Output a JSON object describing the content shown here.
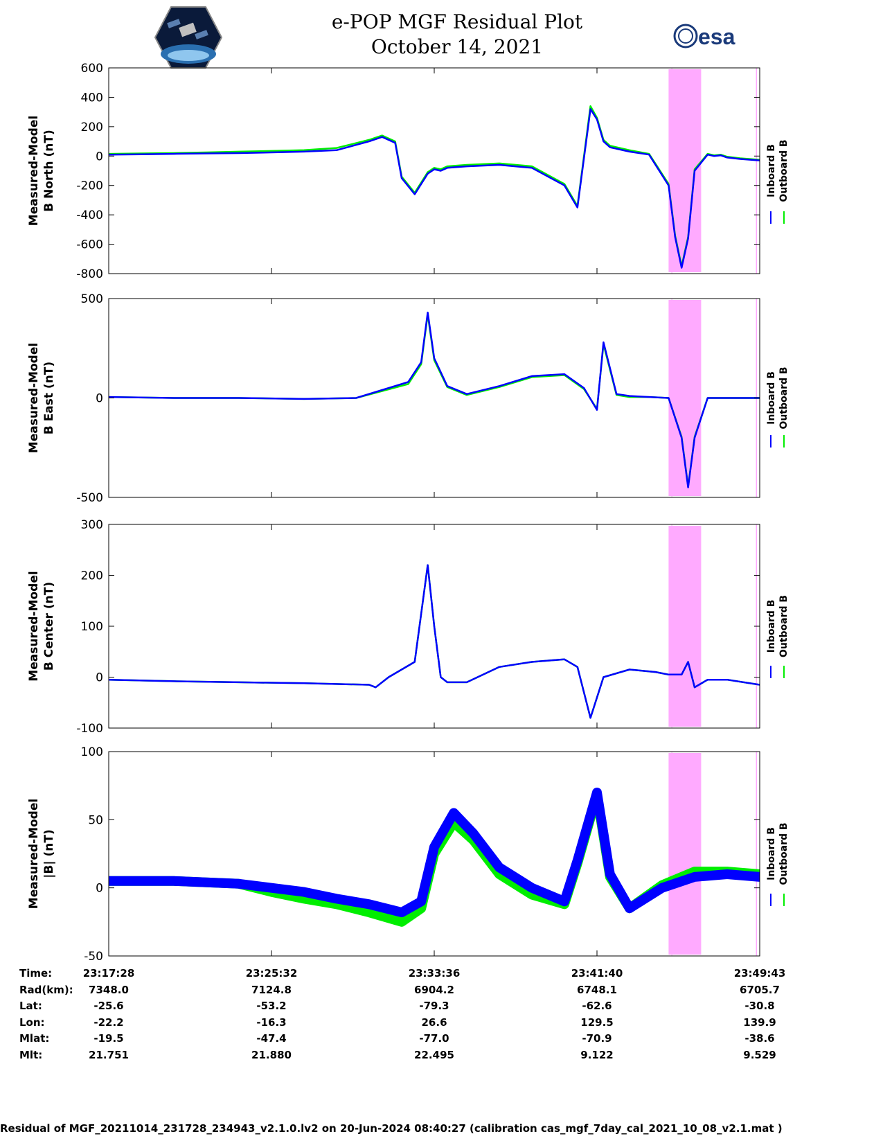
{
  "title": "e-POP MGF Residual Plot",
  "subtitle": "October 14, 2021",
  "logos": {
    "left": "cassiope-satellite-logo",
    "right_text": "esa"
  },
  "colors": {
    "inboard": "#0000ff",
    "outboard": "#00ee00",
    "highlight": "#ffaaff"
  },
  "chart_data": [
    {
      "type": "line",
      "ylabel_line1": "Measured-Model",
      "ylabel_line2": "B North (nT)",
      "ylim": [
        -800,
        600
      ],
      "yticks": [
        "600",
        "400",
        "200",
        "0",
        "-200",
        "-400",
        "-600",
        "-800"
      ],
      "ytick_values": [
        600,
        400,
        200,
        0,
        -200,
        -400,
        -600,
        -800
      ],
      "x": [
        0,
        0.05,
        0.1,
        0.15,
        0.2,
        0.25,
        0.3,
        0.35,
        0.4,
        0.42,
        0.44,
        0.45,
        0.47,
        0.49,
        0.5,
        0.51,
        0.52,
        0.55,
        0.6,
        0.65,
        0.7,
        0.72,
        0.74,
        0.75,
        0.76,
        0.77,
        0.8,
        0.83,
        0.86,
        0.87,
        0.88,
        0.89,
        0.9,
        0.92,
        0.93,
        0.94,
        0.95,
        0.97,
        1.0
      ],
      "series": [
        {
          "name": "Inboard B",
          "values": [
            10,
            12,
            15,
            18,
            20,
            25,
            30,
            40,
            100,
            130,
            90,
            -150,
            -260,
            -120,
            -90,
            -100,
            -80,
            -70,
            -60,
            -80,
            -200,
            -350,
            320,
            250,
            100,
            60,
            30,
            10,
            -200,
            -550,
            -760,
            -560,
            -100,
            10,
            0,
            5,
            -10,
            -20,
            -30
          ]
        },
        {
          "name": "Outboard B",
          "values": [
            15,
            18,
            20,
            25,
            30,
            35,
            40,
            55,
            110,
            140,
            100,
            -140,
            -250,
            -110,
            -80,
            -90,
            -70,
            -60,
            -50,
            -70,
            -190,
            -340,
            340,
            260,
            110,
            70,
            40,
            15,
            -190,
            -540,
            -750,
            -550,
            -90,
            15,
            5,
            10,
            -5,
            -15,
            -25
          ]
        }
      ],
      "highlight": [
        0.86,
        0.91
      ]
    },
    {
      "type": "line",
      "ylabel_line1": "Measured-Model",
      "ylabel_line2": "B East (nT)",
      "ylim": [
        -500,
        500
      ],
      "yticks": [
        "500",
        "0",
        "-500"
      ],
      "ytick_values": [
        500,
        0,
        -500
      ],
      "x": [
        0,
        0.1,
        0.2,
        0.3,
        0.38,
        0.42,
        0.46,
        0.48,
        0.49,
        0.5,
        0.52,
        0.55,
        0.6,
        0.65,
        0.7,
        0.73,
        0.75,
        0.76,
        0.78,
        0.8,
        0.83,
        0.86,
        0.88,
        0.89,
        0.9,
        0.92,
        0.95,
        1.0
      ],
      "series": [
        {
          "name": "Inboard B",
          "values": [
            5,
            0,
            0,
            -5,
            0,
            40,
            80,
            180,
            430,
            200,
            60,
            20,
            60,
            110,
            120,
            50,
            -60,
            280,
            20,
            10,
            5,
            0,
            -200,
            -450,
            -200,
            0,
            0,
            0
          ]
        },
        {
          "name": "Outboard B",
          "values": [
            5,
            0,
            0,
            -5,
            0,
            35,
            70,
            170,
            420,
            190,
            55,
            15,
            55,
            105,
            115,
            45,
            -55,
            270,
            15,
            5,
            5,
            0,
            -195,
            -445,
            -195,
            0,
            0,
            0
          ]
        }
      ],
      "highlight": [
        0.86,
        0.91
      ]
    },
    {
      "type": "line",
      "ylabel_line1": "Measured-Model",
      "ylabel_line2": "B Center (nT)",
      "ylim": [
        -100,
        300
      ],
      "yticks": [
        "300",
        "200",
        "100",
        "0",
        "-100"
      ],
      "ytick_values": [
        300,
        200,
        100,
        0,
        -100
      ],
      "x": [
        0,
        0.1,
        0.2,
        0.3,
        0.4,
        0.41,
        0.43,
        0.47,
        0.49,
        0.5,
        0.51,
        0.52,
        0.55,
        0.6,
        0.65,
        0.7,
        0.72,
        0.74,
        0.76,
        0.8,
        0.84,
        0.86,
        0.88,
        0.89,
        0.9,
        0.92,
        0.95,
        1.0
      ],
      "series": [
        {
          "name": "Inboard B",
          "values": [
            -5,
            -8,
            -10,
            -12,
            -15,
            -20,
            0,
            30,
            220,
            100,
            0,
            -10,
            -10,
            20,
            30,
            35,
            20,
            -80,
            0,
            15,
            10,
            5,
            5,
            30,
            -20,
            -5,
            -5,
            -15
          ]
        },
        {
          "name": "Outboard B",
          "values": [
            -5,
            -8,
            -10,
            -12,
            -15,
            -20,
            0,
            30,
            220,
            100,
            0,
            -10,
            -10,
            20,
            30,
            35,
            20,
            -80,
            0,
            15,
            10,
            5,
            5,
            30,
            -20,
            -5,
            -5,
            -15
          ]
        }
      ],
      "highlight": [
        0.86,
        0.91
      ]
    },
    {
      "type": "line",
      "ylabel_line1": "Measured-Model",
      "ylabel_line2": "|B| (nT)",
      "ylim": [
        -50,
        100
      ],
      "yticks": [
        "100",
        "50",
        "0",
        "-50"
      ],
      "ytick_values": [
        100,
        50,
        0,
        -50
      ],
      "x": [
        0,
        0.1,
        0.2,
        0.25,
        0.3,
        0.35,
        0.4,
        0.45,
        0.48,
        0.5,
        0.53,
        0.56,
        0.6,
        0.65,
        0.7,
        0.72,
        0.75,
        0.77,
        0.8,
        0.85,
        0.9,
        0.95,
        1.0
      ],
      "series": [
        {
          "name": "Inboard B",
          "values": [
            5,
            5,
            3,
            0,
            -3,
            -8,
            -12,
            -18,
            -10,
            30,
            55,
            40,
            15,
            0,
            -10,
            20,
            70,
            10,
            -15,
            0,
            8,
            10,
            8
          ]
        },
        {
          "name": "Outboard B",
          "values": [
            5,
            5,
            3,
            -3,
            -8,
            -12,
            -18,
            -25,
            -15,
            25,
            48,
            35,
            10,
            -5,
            -12,
            18,
            68,
            8,
            -15,
            2,
            12,
            12,
            10
          ]
        }
      ],
      "highlight": [
        0.86,
        0.91
      ]
    }
  ],
  "legend": {
    "inboard": "Inboard B",
    "outboard": "Outboard B"
  },
  "table": {
    "labels": [
      "Time:",
      "Rad(km):",
      "Lat:",
      "Lon:",
      "Mlat:",
      "Mlt:"
    ],
    "columns": [
      [
        "23:17:28",
        "7348.0",
        "-25.6",
        "-22.2",
        "-19.5",
        "21.751"
      ],
      [
        "23:25:32",
        "7124.8",
        "-53.2",
        "-16.3",
        "-47.4",
        "21.880"
      ],
      [
        "23:33:36",
        "6904.2",
        "-79.3",
        "26.6",
        "-77.0",
        "22.495"
      ],
      [
        "23:41:40",
        "6748.1",
        "-62.6",
        "129.5",
        "-70.9",
        "9.122"
      ],
      [
        "23:49:43",
        "6705.7",
        "-30.8",
        "139.9",
        "-38.6",
        "9.529"
      ]
    ]
  },
  "footer": "Residual of MGF_20211014_231728_234943_v2.1.0.lv2 on 20-Jun-2024 08:40:27 (calibration cas_mgf_7day_cal_2021_10_08_v2.1.mat )"
}
